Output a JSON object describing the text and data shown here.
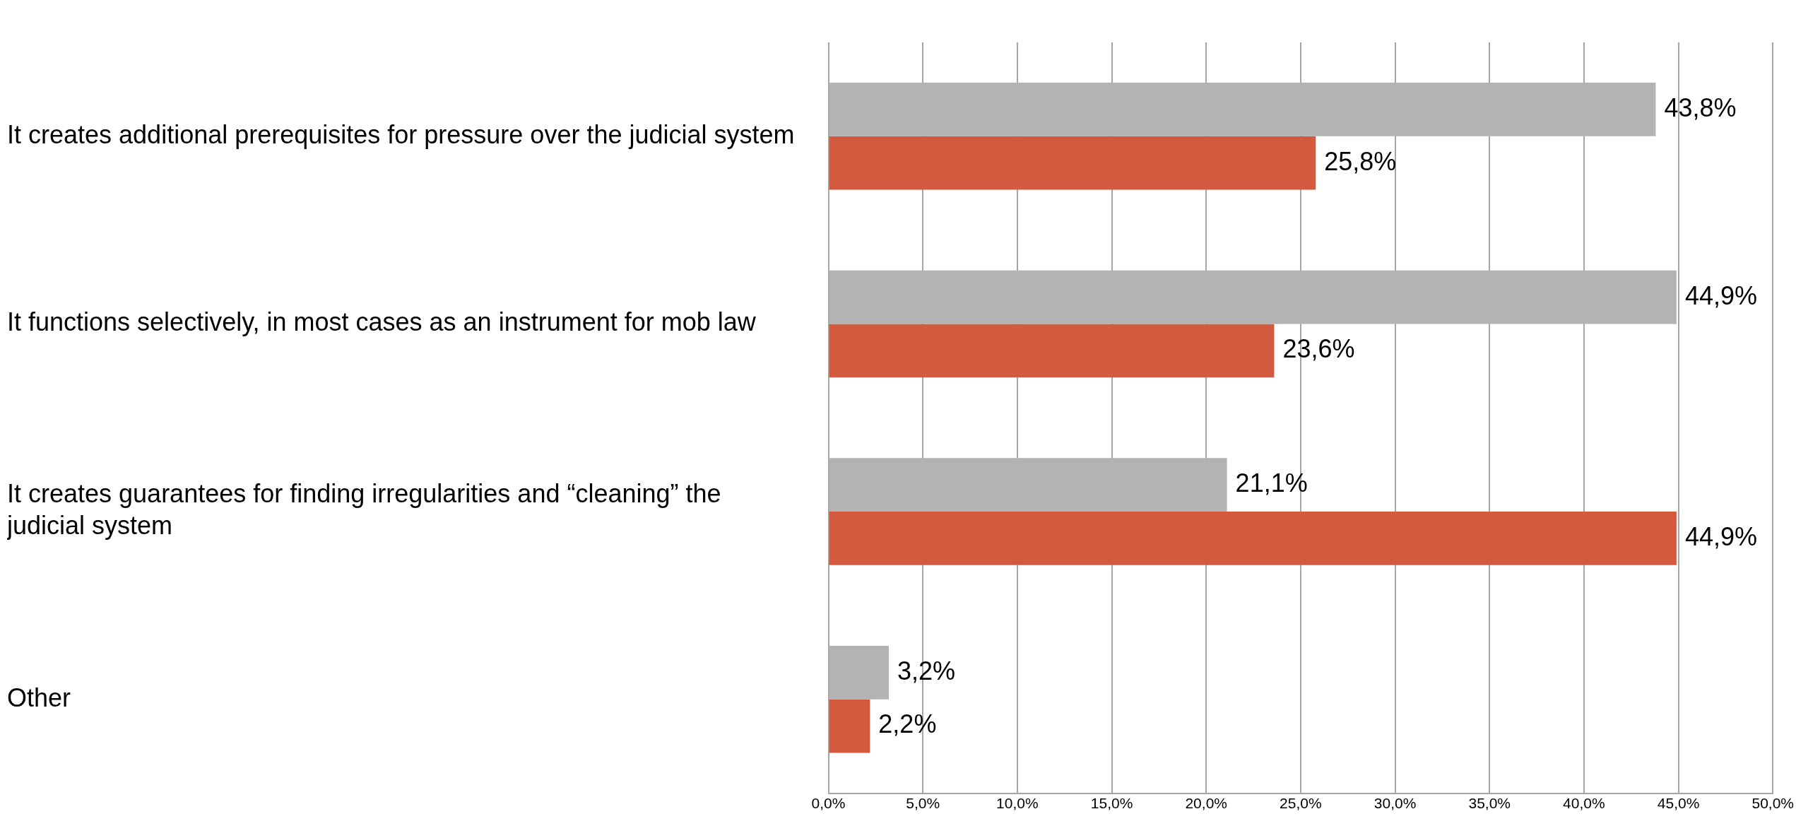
{
  "chart_data": {
    "type": "bar",
    "orientation": "horizontal",
    "categories": [
      "It creates additional prerequisites for pressure over the judicial system",
      "It functions selectively, in most cases as an instrument for mob law",
      "It creates guarantees for finding irregularities and “cleaning” the judicial system",
      "Other"
    ],
    "series": [
      {
        "color": "#b3b3b3",
        "values": [
          43.8,
          44.9,
          21.1,
          3.2
        ],
        "value_labels": [
          "43,8%",
          "44,9%",
          "21,1%",
          "3,2%"
        ]
      },
      {
        "color": "#d35a3f",
        "values": [
          25.8,
          23.6,
          44.9,
          2.2
        ],
        "value_labels": [
          "25,8%",
          "23,6%",
          "44,9%",
          "2,2%"
        ]
      }
    ],
    "xlim": [
      0,
      50
    ],
    "xticks": [
      {
        "value": 0,
        "label": "0,0%"
      },
      {
        "value": 5,
        "label": "5,0%"
      },
      {
        "value": 10,
        "label": "10,0%"
      },
      {
        "value": 15,
        "label": "15,0%"
      },
      {
        "value": 20,
        "label": "20,0%"
      },
      {
        "value": 25,
        "label": "25,0%"
      },
      {
        "value": 30,
        "label": "30,0%"
      },
      {
        "value": 35,
        "label": "35,0%"
      },
      {
        "value": 40,
        "label": "40,0%"
      },
      {
        "value": 45,
        "label": "45,0%"
      },
      {
        "value": 50,
        "label": "50,0%"
      }
    ],
    "grid": "x",
    "legend": false
  }
}
